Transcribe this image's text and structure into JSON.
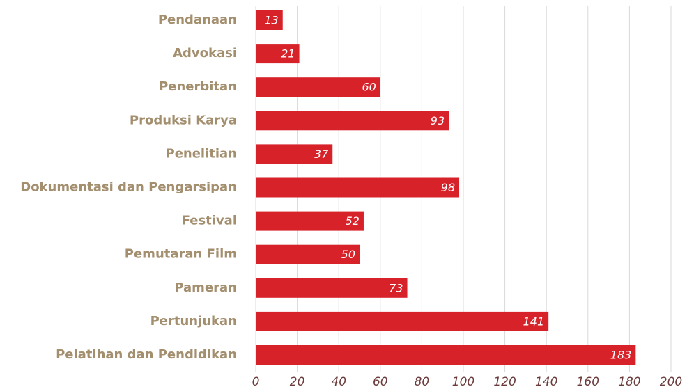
{
  "chart_data": {
    "type": "bar",
    "orientation": "horizontal",
    "categories": [
      "Pendanaan",
      "Advokasi",
      "Penerbitan",
      "Produksi Karya",
      "Penelitian",
      "Dokumentasi dan Pengarsipan",
      "Festival",
      "Pemutaran Film",
      "Pameran",
      "Pertunjukan",
      "Pelatihan dan Pendidikan"
    ],
    "values": [
      13,
      21,
      60,
      93,
      37,
      98,
      52,
      50,
      73,
      141,
      183
    ],
    "color": "#d7222a",
    "xlim": [
      0,
      200
    ],
    "xticks": [
      0,
      20,
      40,
      60,
      80,
      100,
      120,
      140,
      160,
      180,
      200
    ],
    "grid": true
  }
}
